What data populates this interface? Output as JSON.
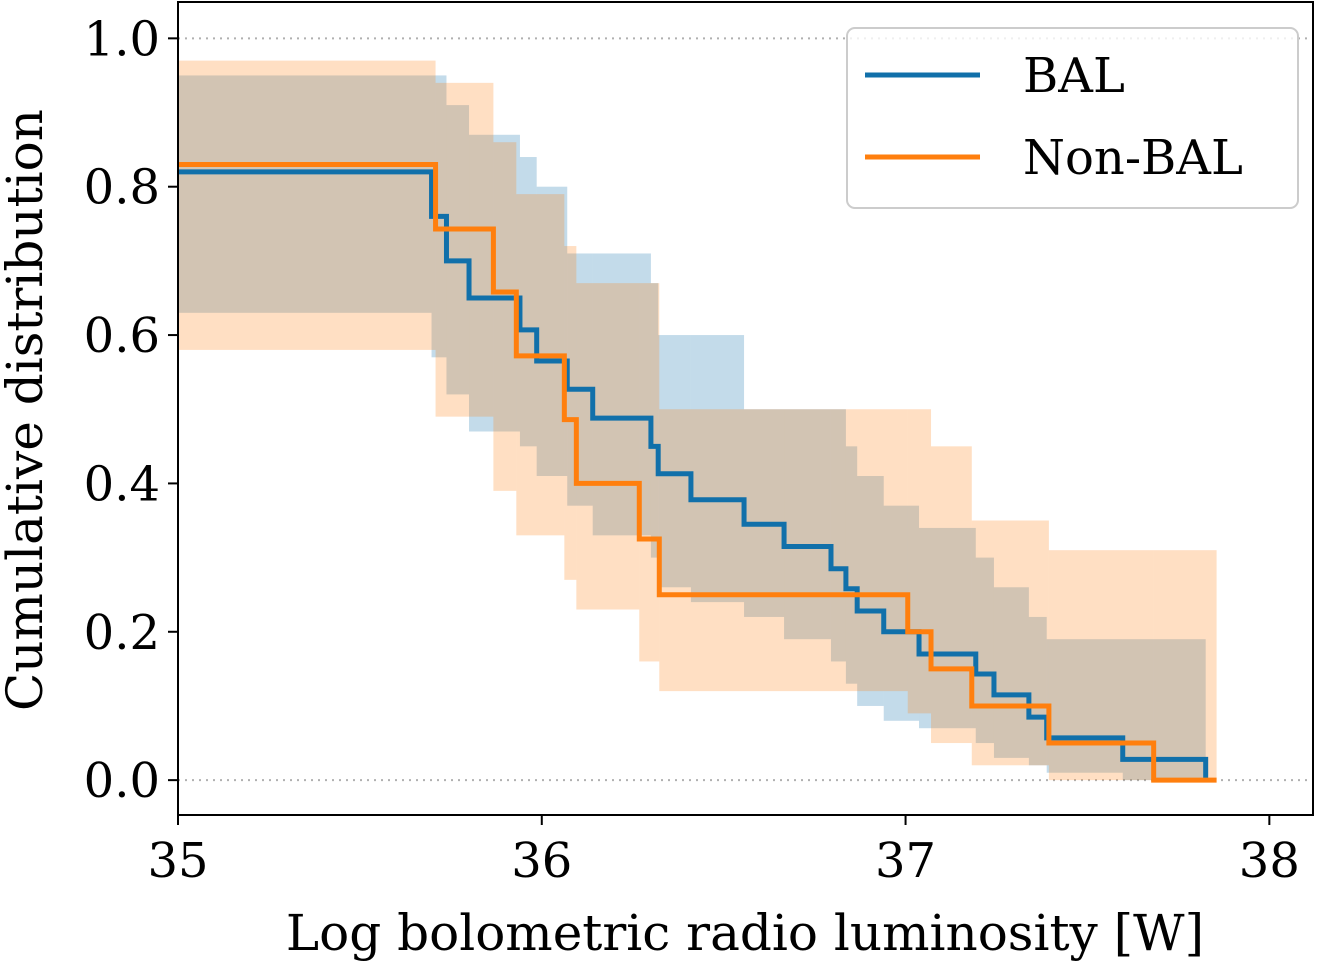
{
  "chart_data": {
    "type": "step",
    "x_label": "Log bolometric radio luminosity [W]",
    "y_label": "Cumulative distribution",
    "xlim": [
      35,
      38.12
    ],
    "ylim": [
      -0.047,
      1.049
    ],
    "xticks": [
      35,
      36,
      37,
      38
    ],
    "yticks": [
      {
        "value": 0,
        "label": "0.0"
      },
      {
        "value": 0.2,
        "label": "0.2"
      },
      {
        "value": 0.4,
        "label": "0.4"
      },
      {
        "value": 0.6,
        "label": "0.6"
      },
      {
        "value": 0.8,
        "label": "0.8"
      },
      {
        "value": 1,
        "label": "1.0"
      }
    ],
    "hlines": [
      0,
      1
    ],
    "legend": "upper right",
    "series": [
      {
        "name": "BAL",
        "color": "#1170aa",
        "x": [
          35,
          35.697,
          35.738,
          35.8,
          35.94,
          35.986,
          36.07,
          36.14,
          36.3,
          36.32,
          36.41,
          36.556,
          36.666,
          36.795,
          36.836,
          36.867,
          36.94,
          37.037,
          37.193,
          37.243,
          37.339,
          37.388,
          37.597,
          37.825
        ],
        "values": [
          0.82,
          0.76,
          0.7,
          0.65,
          0.607,
          0.565,
          0.527,
          0.488,
          0.45,
          0.413,
          0.378,
          0.345,
          0.315,
          0.285,
          0.258,
          0.228,
          0.2,
          0.17,
          0.143,
          0.115,
          0.085,
          0.057,
          0.028,
          0
        ],
        "upper": [
          0.95,
          0.95,
          0.91,
          0.87,
          0.84,
          0.8,
          0.71,
          0.71,
          0.67,
          0.6,
          0.6,
          0.5,
          0.5,
          0.5,
          0.45,
          0.41,
          0.37,
          0.34,
          0.3,
          0.26,
          0.22,
          0.19,
          0.19,
          0.19
        ],
        "lower": [
          0.63,
          0.57,
          0.52,
          0.47,
          0.45,
          0.41,
          0.37,
          0.33,
          0.3,
          0.26,
          0.24,
          0.22,
          0.19,
          0.16,
          0.13,
          0.1,
          0.08,
          0.07,
          0.05,
          0.03,
          0.02,
          0.01,
          0,
          0
        ]
      },
      {
        "name": "Non-BAL",
        "color": "#ff7f0e",
        "x": [
          35,
          35.708,
          35.867,
          35.93,
          36.062,
          36.095,
          36.268,
          36.323,
          37.006,
          37.07,
          37.182,
          37.394,
          37.682,
          37.855
        ],
        "values": [
          0.83,
          0.743,
          0.658,
          0.572,
          0.486,
          0.4,
          0.325,
          0.25,
          0.2,
          0.15,
          0.1,
          0.05,
          0,
          0
        ],
        "upper": [
          0.97,
          0.94,
          0.86,
          0.79,
          0.72,
          0.67,
          0.67,
          0.5,
          0.5,
          0.45,
          0.35,
          0.31,
          0.31,
          0.31
        ],
        "lower": [
          0.58,
          0.49,
          0.39,
          0.33,
          0.27,
          0.23,
          0.16,
          0.12,
          0.09,
          0.05,
          0.02,
          0,
          0,
          0
        ]
      }
    ]
  }
}
